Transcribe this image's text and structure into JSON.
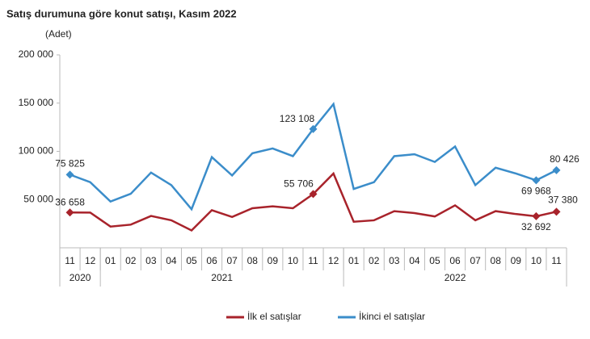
{
  "chart_data": {
    "type": "line",
    "title": "Satış durumuna göre konut satışı, Kasım 2022",
    "y_label": "(Adet)",
    "categories": [
      "11",
      "12",
      "01",
      "02",
      "03",
      "04",
      "05",
      "06",
      "07",
      "08",
      "09",
      "10",
      "11",
      "12",
      "01",
      "02",
      "03",
      "04",
      "05",
      "06",
      "07",
      "08",
      "09",
      "10",
      "11"
    ],
    "x_groups": [
      {
        "label": "2020",
        "count": 2
      },
      {
        "label": "2021",
        "count": 12
      },
      {
        "label": "2022",
        "count": 11
      }
    ],
    "series": [
      {
        "name": "İlk el satışlar",
        "color": "#a8232b",
        "values": [
          36658,
          36500,
          22000,
          24000,
          33000,
          28500,
          18000,
          39000,
          32000,
          41000,
          43000,
          41000,
          55706,
          77000,
          27000,
          28500,
          38000,
          36000,
          32500,
          44000,
          28500,
          38000,
          35000,
          32692,
          37380
        ],
        "value_labels": [
          "36 658",
          null,
          null,
          null,
          null,
          null,
          null,
          null,
          null,
          null,
          null,
          null,
          "55 706",
          null,
          null,
          null,
          null,
          null,
          null,
          null,
          null,
          null,
          null,
          "32 692",
          "37 380"
        ]
      },
      {
        "name": "İkinci el satışlar",
        "color": "#3b8dca",
        "values": [
          75825,
          68000,
          48000,
          56000,
          78000,
          65000,
          40000,
          94000,
          75000,
          98000,
          103000,
          95000,
          123108,
          149000,
          61000,
          68000,
          95000,
          97000,
          89000,
          105000,
          65000,
          83000,
          77000,
          69968,
          80426
        ],
        "value_labels": [
          "75 825",
          null,
          null,
          null,
          null,
          null,
          null,
          null,
          null,
          null,
          null,
          null,
          "123 108",
          null,
          null,
          null,
          null,
          null,
          null,
          null,
          null,
          null,
          null,
          "69 968",
          "80 426"
        ]
      }
    ],
    "ylim": [
      0,
      200000
    ],
    "yticks": [
      {
        "value": 50000,
        "label": "50 000"
      },
      {
        "value": 100000,
        "label": "100 000"
      },
      {
        "value": 150000,
        "label": "150 000"
      },
      {
        "value": 200000,
        "label": "200 000"
      }
    ],
    "grid": false
  }
}
